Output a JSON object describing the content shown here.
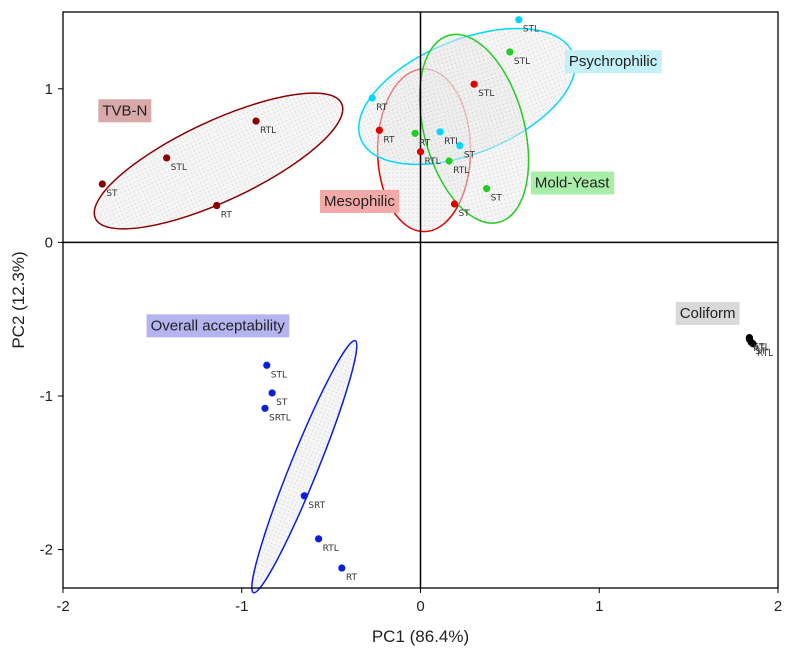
{
  "chart_data": {
    "type": "scatter",
    "title": "",
    "xlabel": "PC1 (86.4%)",
    "ylabel": "PC2 (12.3%)",
    "xlim": [
      -2,
      2
    ],
    "ylim": [
      -2.25,
      1.5
    ],
    "xticks": [
      "-2",
      "-1",
      "0",
      "1",
      "2"
    ],
    "yticks": [
      "-2",
      "-1",
      "0",
      "1"
    ],
    "grid": false,
    "groups": [
      {
        "name": "TVB-N",
        "color": "#8b0000",
        "label_bg": "#d9a8a8",
        "ellipse": {
          "cx": -1.13,
          "cy": 0.53,
          "rx": 0.76,
          "ry": 0.26,
          "angle_deg": 25
        },
        "label_pos": [
          -1.78,
          0.86
        ],
        "points": [
          {
            "label": "RTL",
            "x": -0.92,
            "y": 0.79
          },
          {
            "label": "STL",
            "x": -1.42,
            "y": 0.55
          },
          {
            "label": "ST",
            "x": -1.78,
            "y": 0.38
          },
          {
            "label": "RT",
            "x": -1.14,
            "y": 0.24
          }
        ]
      },
      {
        "name": "Mesophilic",
        "color": "#e00000",
        "label_bg": "#f4a9a9",
        "ellipse": {
          "cx": 0.02,
          "cy": 0.6,
          "rx": 0.26,
          "ry": 0.53,
          "angle_deg": 0
        },
        "label_pos": [
          -0.54,
          0.27
        ],
        "points": [
          {
            "label": "STL",
            "x": 0.3,
            "y": 1.03
          },
          {
            "label": "RT",
            "x": -0.23,
            "y": 0.73
          },
          {
            "label": "RTL",
            "x": 0.0,
            "y": 0.59
          },
          {
            "label": "ST",
            "x": 0.19,
            "y": 0.25
          }
        ]
      },
      {
        "name": "Psychrophilic",
        "color": "#00d8ff",
        "label_bg": "#c4f0f8",
        "ellipse": {
          "cx": 0.26,
          "cy": 0.95,
          "rx": 0.64,
          "ry": 0.37,
          "angle_deg": 22
        },
        "label_pos": [
          0.83,
          1.18
        ],
        "points": [
          {
            "label": "STL",
            "x": 0.55,
            "y": 1.45
          },
          {
            "label": "RT",
            "x": -0.27,
            "y": 0.94
          },
          {
            "label": "RTL",
            "x": 0.11,
            "y": 0.72
          },
          {
            "label": "ST",
            "x": 0.22,
            "y": 0.63
          }
        ]
      },
      {
        "name": "Mold-Yeast",
        "color": "#22cc22",
        "label_bg": "#a8eea8",
        "ellipse": {
          "cx": 0.3,
          "cy": 0.74,
          "rx": 0.28,
          "ry": 0.63,
          "angle_deg": 15
        },
        "label_pos": [
          0.64,
          0.39
        ],
        "points": [
          {
            "label": "STL",
            "x": 0.5,
            "y": 1.24
          },
          {
            "label": "RT",
            "x": -0.03,
            "y": 0.71
          },
          {
            "label": "RTL",
            "x": 0.16,
            "y": 0.53
          },
          {
            "label": "ST",
            "x": 0.37,
            "y": 0.35
          }
        ]
      },
      {
        "name": "Overall acceptability",
        "color": "#0a1ee0",
        "label_bg": "#b4b4f0",
        "ellipse": {
          "cx": -0.65,
          "cy": -1.46,
          "rx": 0.76,
          "ry": 0.09,
          "angle_deg": 68
        },
        "label_pos": [
          -1.51,
          -0.54
        ],
        "points": [
          {
            "label": "STL",
            "x": -0.86,
            "y": -0.8
          },
          {
            "label": "ST",
            "x": -0.83,
            "y": -0.98
          },
          {
            "label": "SRTL",
            "x": -0.87,
            "y": -1.08
          },
          {
            "label": "SRT",
            "x": -0.65,
            "y": -1.65
          },
          {
            "label": "RTL",
            "x": -0.57,
            "y": -1.93
          },
          {
            "label": "RT",
            "x": -0.44,
            "y": -2.12
          }
        ]
      },
      {
        "name": "Coliform",
        "color": "#000000",
        "label_bg": "#d9d9d9",
        "ellipse": null,
        "label_pos": [
          1.45,
          -0.46
        ],
        "points": [
          {
            "label": "STL",
            "x": 1.84,
            "y": -0.62
          },
          {
            "label": "ST",
            "x": 1.85,
            "y": -0.65
          },
          {
            "label": "RTL",
            "x": 1.86,
            "y": -0.66
          },
          {
            "label": "RT",
            "x": 1.84,
            "y": -0.63
          }
        ]
      }
    ]
  }
}
